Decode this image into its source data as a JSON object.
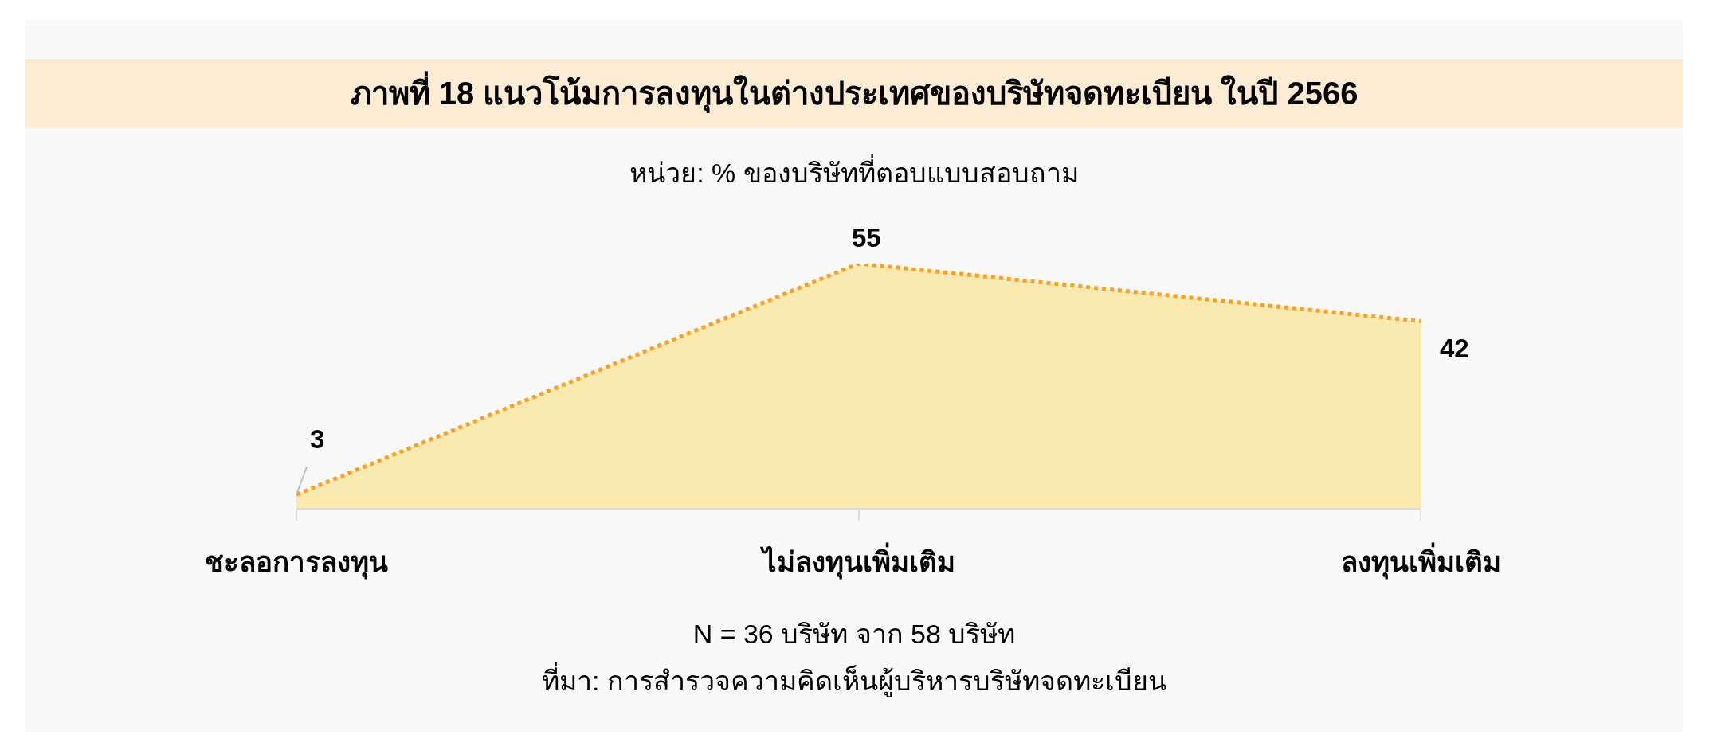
{
  "chart_data": {
    "type": "area",
    "title": "ภาพที่ 18 แนวโน้มการลงทุนในต่างประเทศของบริษัทจดทะเบียน ในปี 2566",
    "subtitle": "หน่วย: % ของบริษัทที่ตอบแบบสอบถาม",
    "categories": [
      "ชะลอการลงทุน",
      "ไม่ลงทุนเพิ่มเติม",
      "ลงทุนเพิ่มเติม"
    ],
    "values": [
      3,
      55,
      42
    ],
    "color": "#ffa024",
    "line_style": "dotted",
    "data_labels": true,
    "annotations": [
      "N = 36 บริษัท จาก 58 บริษัท",
      "ที่มา: การสำรวจความคิดเห็นผู้บริหารบริษัทจดทะเบียน"
    ]
  }
}
